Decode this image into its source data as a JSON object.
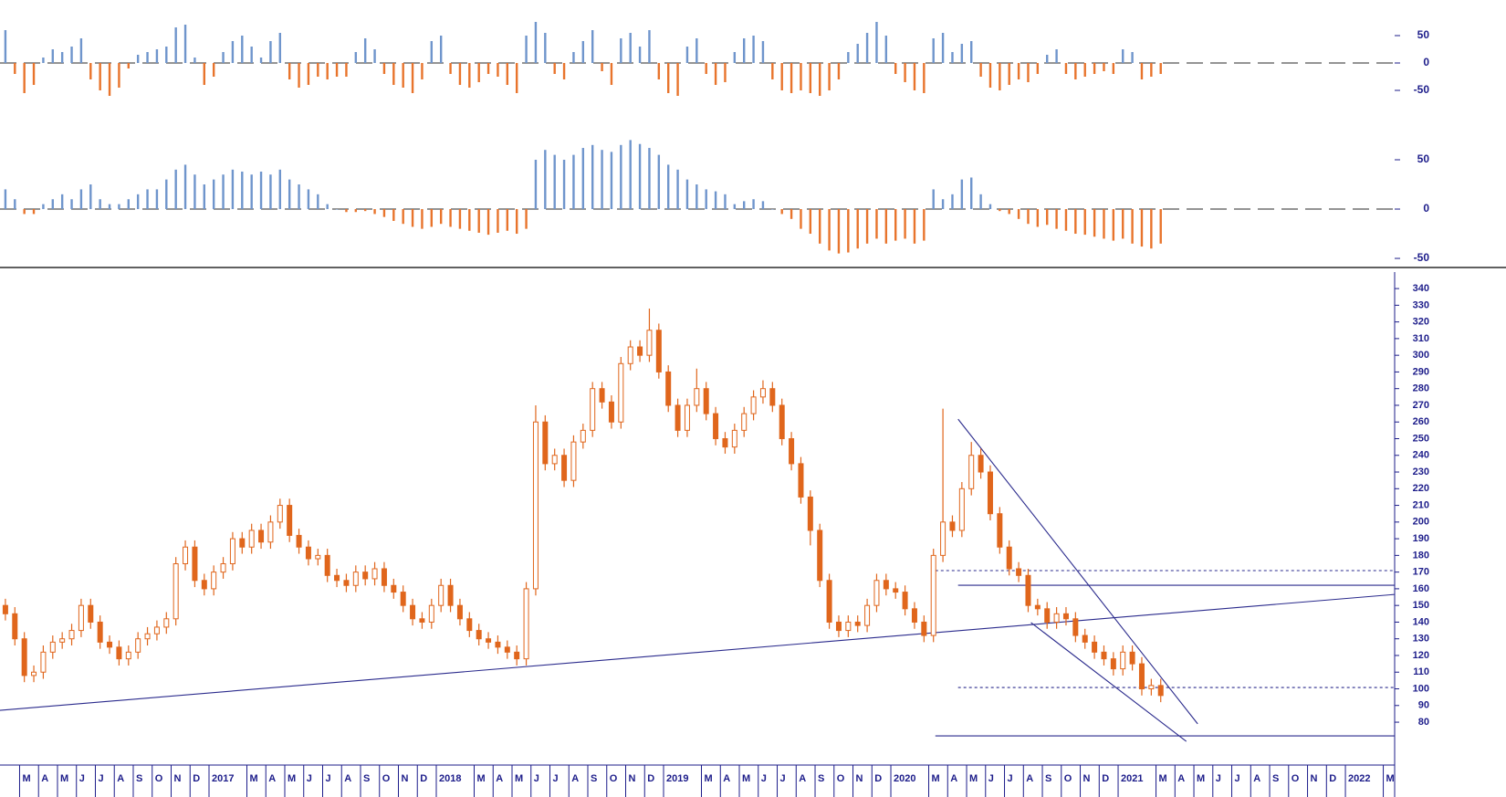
{
  "chart_data": [
    {
      "type": "oscillator",
      "ylim": [
        -110,
        115
      ],
      "yticks": [
        50,
        0,
        -50
      ],
      "positive_color": "#6f95cc",
      "negative_color": "#e8742c",
      "values": [
        60,
        -20,
        -55,
        -40,
        10,
        25,
        20,
        30,
        45,
        -30,
        -50,
        -60,
        -45,
        -10,
        15,
        20,
        25,
        30,
        65,
        70,
        10,
        -40,
        -25,
        20,
        40,
        50,
        30,
        10,
        40,
        55,
        -30,
        -45,
        -40,
        -25,
        -30,
        -25,
        -25,
        20,
        45,
        25,
        -20,
        -40,
        -45,
        -55,
        -30,
        40,
        50,
        -20,
        -40,
        -45,
        -35,
        -20,
        -25,
        -40,
        -55,
        50,
        75,
        55,
        -20,
        -30,
        20,
        40,
        60,
        -15,
        -40,
        45,
        55,
        30,
        60,
        -30,
        -55,
        -60,
        30,
        45,
        -20,
        -40,
        -35,
        20,
        45,
        50,
        40,
        -30,
        -50,
        -55,
        -50,
        -55,
        -60,
        -50,
        -30,
        20,
        35,
        55,
        75,
        50,
        -20,
        -35,
        -50,
        -55,
        45,
        55,
        20,
        35,
        40,
        -25,
        -45,
        -50,
        -40,
        -30,
        -35,
        -20,
        15,
        25,
        -20,
        -30,
        -25,
        -20,
        -15,
        -20,
        25,
        20,
        -30,
        -25,
        -20
      ]
    },
    {
      "type": "oscillator",
      "ylim": [
        -58.3,
        82.4
      ],
      "yticks": [
        50,
        0,
        -50
      ],
      "positive_color": "#6f95cc",
      "negative_color": "#e8742c",
      "values": [
        20,
        10,
        -5,
        -5,
        5,
        10,
        15,
        10,
        20,
        25,
        10,
        5,
        5,
        10,
        15,
        20,
        20,
        30,
        40,
        45,
        35,
        25,
        30,
        35,
        40,
        38,
        35,
        38,
        35,
        40,
        30,
        25,
        20,
        15,
        5,
        0,
        -3,
        -3,
        -2,
        -5,
        -8,
        -12,
        -15,
        -18,
        -20,
        -18,
        -15,
        -18,
        -20,
        -22,
        -24,
        -26,
        -24,
        -22,
        -25,
        -20,
        50,
        60,
        55,
        50,
        55,
        62,
        65,
        60,
        58,
        65,
        70,
        66,
        62,
        55,
        45,
        40,
        30,
        25,
        20,
        18,
        15,
        5,
        8,
        10,
        8,
        0,
        -5,
        -10,
        -20,
        -25,
        -35,
        -42,
        -45,
        -44,
        -40,
        -35,
        -30,
        -35,
        -32,
        -30,
        -35,
        -32,
        20,
        10,
        15,
        30,
        32,
        15,
        5,
        -2,
        -5,
        -10,
        -15,
        -18,
        -16,
        -20,
        -22,
        -25,
        -26,
        -28,
        -30,
        -32,
        -30,
        -35,
        -38,
        -40,
        -35
      ]
    },
    {
      "type": "candlestick",
      "up_color": "#ffffff",
      "down_color": "#e0661c",
      "edge_color": "#e0661c",
      "line_color": "#2a2a8c",
      "xlim": [
        -0.57,
        146.7
      ],
      "ylim": [
        54.3,
        349.9
      ],
      "yticks": [
        80,
        90,
        100,
        110,
        120,
        130,
        140,
        150,
        160,
        170,
        180,
        190,
        200,
        210,
        220,
        230,
        240,
        250,
        260,
        270,
        280,
        290,
        300,
        310,
        320,
        330,
        340
      ],
      "xticks": [
        {
          "value": 1.5,
          "label": "M"
        },
        {
          "value": 3.5,
          "label": "A"
        },
        {
          "value": 5.5,
          "label": "M"
        },
        {
          "value": 7.5,
          "label": "J"
        },
        {
          "value": 9.5,
          "label": "J"
        },
        {
          "value": 11.5,
          "label": "A"
        },
        {
          "value": 13.5,
          "label": "S"
        },
        {
          "value": 15.5,
          "label": "O"
        },
        {
          "value": 17.5,
          "label": "N"
        },
        {
          "value": 19.5,
          "label": "D"
        },
        {
          "value": 21.5,
          "label": "2017"
        },
        {
          "value": 25.5,
          "label": "M"
        },
        {
          "value": 27.5,
          "label": "A"
        },
        {
          "value": 29.5,
          "label": "M"
        },
        {
          "value": 31.5,
          "label": "J"
        },
        {
          "value": 33.5,
          "label": "J"
        },
        {
          "value": 35.5,
          "label": "A"
        },
        {
          "value": 37.5,
          "label": "S"
        },
        {
          "value": 39.5,
          "label": "O"
        },
        {
          "value": 41.5,
          "label": "N"
        },
        {
          "value": 43.5,
          "label": "D"
        },
        {
          "value": 45.5,
          "label": "2018"
        },
        {
          "value": 49.5,
          "label": "M"
        },
        {
          "value": 51.5,
          "label": "A"
        },
        {
          "value": 53.5,
          "label": "M"
        },
        {
          "value": 55.5,
          "label": "J"
        },
        {
          "value": 57.5,
          "label": "J"
        },
        {
          "value": 59.5,
          "label": "A"
        },
        {
          "value": 61.5,
          "label": "S"
        },
        {
          "value": 63.5,
          "label": "O"
        },
        {
          "value": 65.5,
          "label": "N"
        },
        {
          "value": 67.5,
          "label": "D"
        },
        {
          "value": 69.5,
          "label": "2019"
        },
        {
          "value": 73.5,
          "label": "M"
        },
        {
          "value": 75.5,
          "label": "A"
        },
        {
          "value": 77.5,
          "label": "M"
        },
        {
          "value": 79.5,
          "label": "J"
        },
        {
          "value": 81.5,
          "label": "J"
        },
        {
          "value": 83.5,
          "label": "A"
        },
        {
          "value": 85.5,
          "label": "S"
        },
        {
          "value": 87.5,
          "label": "O"
        },
        {
          "value": 89.5,
          "label": "N"
        },
        {
          "value": 91.5,
          "label": "D"
        },
        {
          "value": 93.5,
          "label": "2020"
        },
        {
          "value": 97.5,
          "label": "M"
        },
        {
          "value": 99.5,
          "label": "A"
        },
        {
          "value": 101.5,
          "label": "M"
        },
        {
          "value": 103.5,
          "label": "J"
        },
        {
          "value": 105.5,
          "label": "J"
        },
        {
          "value": 107.5,
          "label": "A"
        },
        {
          "value": 109.5,
          "label": "S"
        },
        {
          "value": 111.5,
          "label": "O"
        },
        {
          "value": 113.5,
          "label": "N"
        },
        {
          "value": 115.5,
          "label": "D"
        },
        {
          "value": 117.5,
          "label": "2021"
        },
        {
          "value": 121.5,
          "label": "M"
        },
        {
          "value": 123.5,
          "label": "A"
        },
        {
          "value": 125.5,
          "label": "M"
        },
        {
          "value": 127.5,
          "label": "J"
        },
        {
          "value": 129.5,
          "label": "J"
        },
        {
          "value": 131.5,
          "label": "A"
        },
        {
          "value": 133.5,
          "label": "S"
        },
        {
          "value": 135.5,
          "label": "O"
        },
        {
          "value": 137.5,
          "label": "N"
        },
        {
          "value": 139.5,
          "label": "D"
        },
        {
          "value": 141.5,
          "label": "2022"
        },
        {
          "value": 145.5,
          "label": "M"
        }
      ],
      "open": [
        150,
        145,
        130,
        108,
        110,
        122,
        128,
        130,
        135,
        150,
        140,
        128,
        125,
        118,
        122,
        130,
        133,
        137,
        142,
        175,
        185,
        165,
        160,
        170,
        175,
        190,
        185,
        195,
        188,
        200,
        210,
        192,
        185,
        178,
        180,
        168,
        165,
        162,
        170,
        166,
        172,
        162,
        158,
        150,
        142,
        140,
        150,
        162,
        150,
        142,
        135,
        130,
        128,
        125,
        122,
        118,
        160,
        260,
        235,
        240,
        225,
        248,
        255,
        280,
        272,
        260,
        295,
        305,
        300,
        315,
        290,
        270,
        255,
        270,
        280,
        265,
        250,
        245,
        255,
        265,
        275,
        280,
        270,
        250,
        235,
        215,
        195,
        165,
        140,
        135,
        140,
        138,
        150,
        165,
        160,
        158,
        148,
        140,
        132,
        180,
        200,
        195,
        220,
        240,
        230,
        205,
        185,
        172,
        168,
        150,
        148,
        140,
        145,
        142,
        132,
        128,
        122,
        118,
        112,
        122,
        115,
        100,
        102
      ],
      "high": [
        154,
        149,
        134,
        114,
        126,
        132,
        134,
        139,
        154,
        154,
        144,
        132,
        129,
        126,
        134,
        137,
        141,
        146,
        179,
        189,
        189,
        169,
        174,
        179,
        194,
        194,
        199,
        199,
        204,
        214,
        214,
        196,
        189,
        184,
        184,
        172,
        169,
        174,
        174,
        176,
        176,
        166,
        162,
        154,
        146,
        154,
        166,
        166,
        154,
        146,
        139,
        134,
        132,
        129,
        126,
        164,
        270,
        264,
        244,
        244,
        252,
        259,
        284,
        284,
        276,
        299,
        309,
        309,
        328,
        319,
        294,
        274,
        274,
        292,
        284,
        269,
        254,
        259,
        269,
        279,
        285,
        284,
        274,
        254,
        239,
        219,
        199,
        169,
        144,
        144,
        144,
        154,
        169,
        169,
        164,
        162,
        152,
        144,
        184,
        268,
        204,
        224,
        248,
        244,
        234,
        209,
        189,
        176,
        172,
        154,
        152,
        149,
        149,
        146,
        136,
        132,
        126,
        122,
        126,
        126,
        119,
        106,
        106
      ],
      "low": [
        141,
        126,
        104,
        104,
        106,
        118,
        124,
        126,
        131,
        136,
        124,
        121,
        114,
        114,
        118,
        126,
        129,
        133,
        138,
        171,
        161,
        156,
        156,
        166,
        171,
        181,
        181,
        184,
        184,
        196,
        188,
        181,
        174,
        174,
        164,
        161,
        158,
        158,
        162,
        162,
        158,
        154,
        146,
        138,
        136,
        136,
        146,
        146,
        138,
        131,
        126,
        124,
        121,
        118,
        114,
        114,
        156,
        231,
        231,
        221,
        221,
        244,
        251,
        268,
        256,
        256,
        291,
        296,
        296,
        286,
        266,
        251,
        251,
        266,
        261,
        246,
        241,
        241,
        251,
        261,
        271,
        266,
        246,
        231,
        211,
        186,
        161,
        136,
        131,
        131,
        134,
        134,
        146,
        156,
        154,
        144,
        136,
        128,
        128,
        176,
        191,
        191,
        216,
        226,
        201,
        181,
        168,
        164,
        146,
        144,
        136,
        136,
        138,
        128,
        124,
        118,
        114,
        108,
        108,
        111,
        96,
        96,
        92
      ],
      "close": [
        145,
        130,
        108,
        110,
        122,
        128,
        130,
        135,
        150,
        140,
        128,
        125,
        118,
        122,
        130,
        133,
        137,
        142,
        175,
        185,
        165,
        160,
        170,
        175,
        190,
        185,
        195,
        188,
        200,
        210,
        192,
        185,
        178,
        180,
        168,
        165,
        162,
        170,
        166,
        172,
        162,
        158,
        150,
        142,
        140,
        150,
        162,
        150,
        142,
        135,
        130,
        128,
        125,
        122,
        118,
        160,
        260,
        235,
        240,
        225,
        248,
        255,
        280,
        272,
        260,
        295,
        305,
        300,
        315,
        290,
        270,
        255,
        270,
        280,
        265,
        250,
        245,
        255,
        265,
        275,
        280,
        270,
        250,
        235,
        215,
        195,
        165,
        140,
        135,
        140,
        138,
        150,
        165,
        160,
        158,
        148,
        140,
        132,
        180,
        200,
        195,
        220,
        240,
        230,
        205,
        185,
        172,
        168,
        150,
        148,
        140,
        145,
        142,
        132,
        128,
        122,
        118,
        112,
        122,
        115,
        100,
        102,
        96
      ],
      "lines": [
        {
          "x": [
            -0.57,
            146.7
          ],
          "y": [
            87.1,
            156.6
          ],
          "style": "solid"
        },
        {
          "x": [
            100.6,
            125.9
          ],
          "y": [
            261.7,
            79
          ],
          "style": "solid"
        },
        {
          "x": [
            108.3,
            124.7
          ],
          "y": [
            139.7,
            68.5
          ],
          "style": "solid"
        },
        {
          "x": [
            100.6,
            146.7
          ],
          "y": [
            162.1,
            162.1
          ],
          "style": "solid"
        },
        {
          "x": [
            98.2,
            146.7
          ],
          "y": [
            71.8,
            71.8
          ],
          "style": "solid"
        },
        {
          "x": [
            98.2,
            146.7
          ],
          "y": [
            170.9,
            170.9
          ],
          "style": "dotted"
        },
        {
          "x": [
            100.6,
            146.7
          ],
          "y": [
            100.8,
            100.8
          ],
          "style": "dotted"
        }
      ]
    }
  ]
}
